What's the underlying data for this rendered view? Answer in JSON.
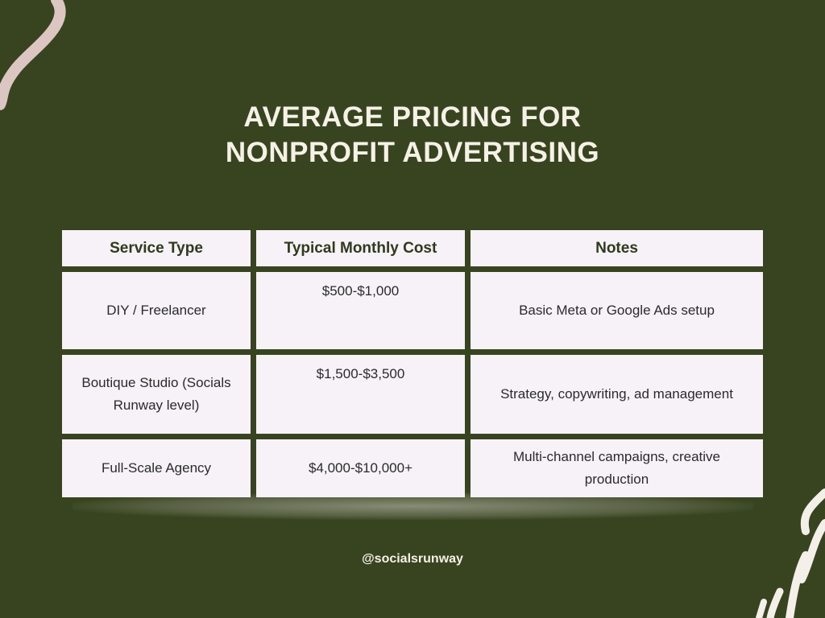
{
  "title": [
    "AVERAGE PRICING FOR",
    "NONPROFIT ADVERTISING"
  ],
  "table": {
    "header": [
      "Service Type",
      "Typical Monthly Cost",
      "Notes"
    ],
    "rows": [
      [
        "DIY / Freelancer",
        "$500-$1,000",
        "Basic Meta or Google Ads setup"
      ],
      [
        "Boutique Studio (Socials Runway level)",
        "$1,500-$3,500",
        "Strategy, copywriting, ad management"
      ],
      [
        "Full-Scale Agency",
        "$4,000-$10,000+",
        "Multi-channel campaigns, creative production"
      ]
    ]
  },
  "footer": "@socialsrunway"
}
